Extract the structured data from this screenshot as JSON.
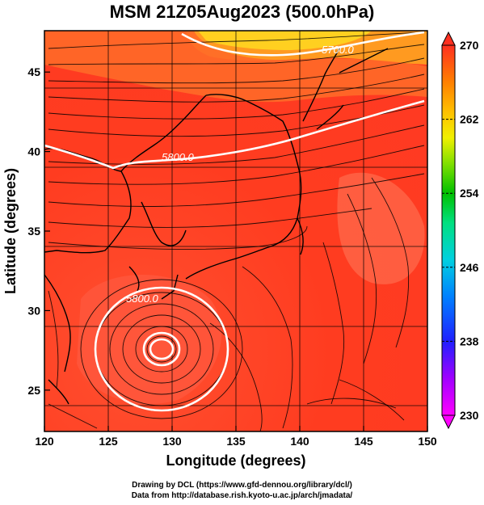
{
  "title": "MSM 21Z05Aug2023 (500.0hPa)",
  "xlabel": "Longitude (degrees)",
  "ylabel": "Latitude  (degrees)",
  "credits": {
    "line1": "Drawing by DCL (https://www.gfd-dennou.org/library/dcl/)",
    "line2": "Data from http://database.rish.kyoto-u.ac.jp/arch/jmadata/"
  },
  "map": {
    "lon_range": [
      120,
      150
    ],
    "lat_range": [
      22.4,
      47.6
    ],
    "lon_ticks": [
      "120",
      "125",
      "130",
      "135",
      "140",
      "145",
      "150"
    ],
    "lat_ticks": [
      "25",
      "30",
      "35",
      "40",
      "45"
    ],
    "contour_labels": [
      "5700.0",
      "5800.0",
      "5800.0"
    ],
    "colorbar": {
      "min": 230,
      "max": 270,
      "tick_labels": [
        "270",
        "262",
        "254",
        "246",
        "238",
        "230"
      ],
      "colors": [
        "#ff00ff",
        "#c000ff",
        "#4000ff",
        "#0040ff",
        "#00a0ff",
        "#00e0e0",
        "#00e080",
        "#00c000",
        "#60e000",
        "#c0e000",
        "#ffff00",
        "#ffc000",
        "#ff8000",
        "#ff4000",
        "#ff2020"
      ]
    }
  }
}
